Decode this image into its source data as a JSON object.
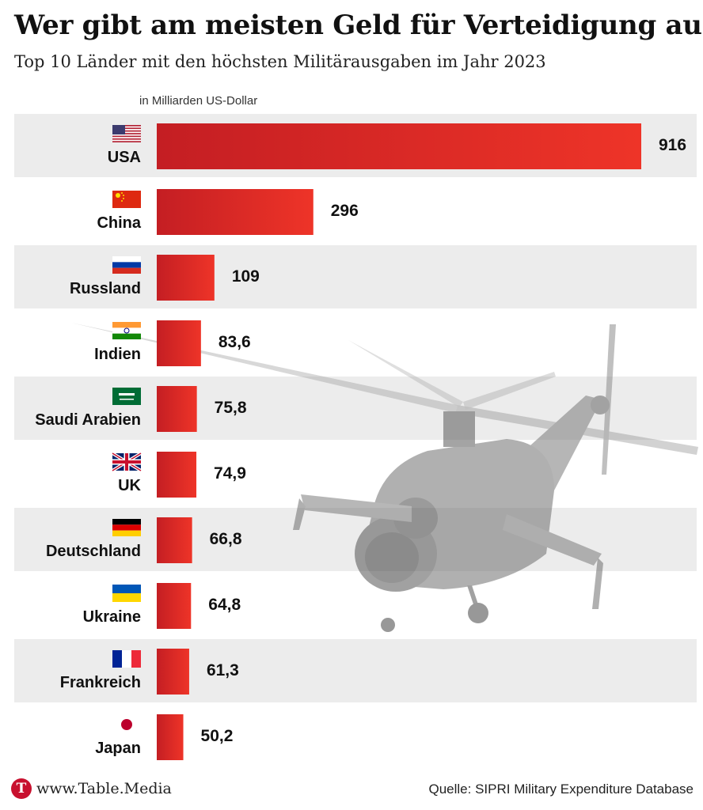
{
  "header": {
    "title": "Wer gibt am meisten Geld für Verteidigung aus?",
    "subtitle": "Top 10 Länder mit den höchsten Militärausgaben im Jahr 2023",
    "unit": "in Milliarden US-Dollar"
  },
  "chart_data": {
    "type": "bar",
    "orientation": "horizontal",
    "categories": [
      "USA",
      "China",
      "Russland",
      "Indien",
      "Saudi Arabien",
      "UK",
      "Deutschland",
      "Ukraine",
      "Frankreich",
      "Japan"
    ],
    "values": [
      916,
      296,
      109,
      83.6,
      75.8,
      74.9,
      66.8,
      64.8,
      61.3,
      50.2
    ],
    "value_labels": [
      "916",
      "296",
      "109",
      "83,6",
      "75,8",
      "74,9",
      "66,8",
      "64,8",
      "61,3",
      "50,2"
    ],
    "flags": [
      "us-flag-icon",
      "china-flag-icon",
      "russia-flag-icon",
      "india-flag-icon",
      "saudi-arabia-flag-icon",
      "uk-flag-icon",
      "germany-flag-icon",
      "ukraine-flag-icon",
      "france-flag-icon",
      "japan-flag-icon"
    ],
    "background_image": "helicopter-image",
    "bar_color": "#e8302a",
    "bar_color_dark": "#c41e23",
    "row_band_color": "#ececec",
    "grid": false,
    "legend": "none"
  },
  "footer": {
    "logo_letter": "T",
    "url": "www.Table.Media",
    "source": "Quelle: SIPRI Military Expenditure Database"
  }
}
